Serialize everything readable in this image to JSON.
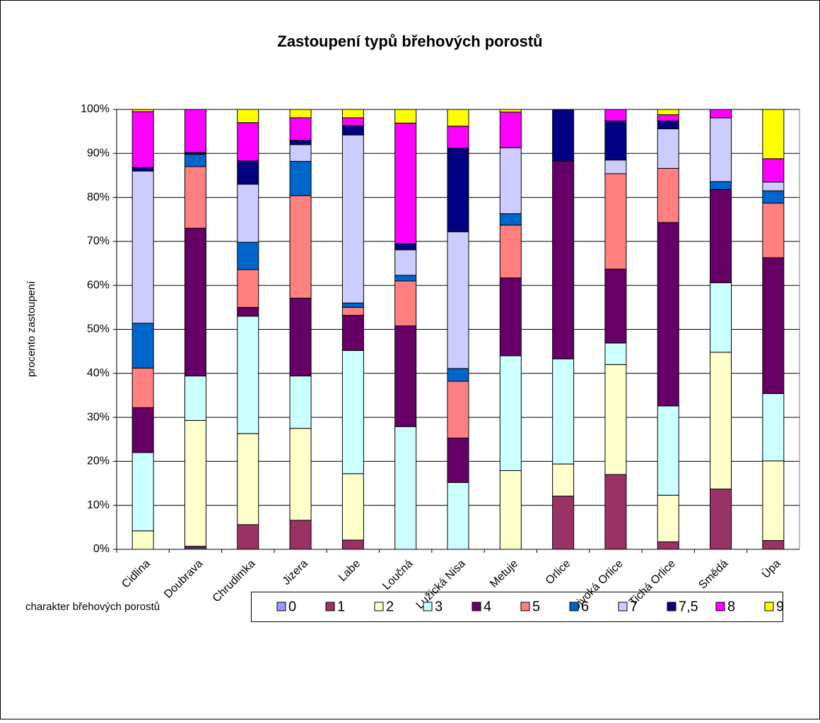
{
  "chart_data": {
    "type": "stacked_bar_100",
    "title": "Zastoupení typů břehových porostů",
    "y_label": "procento zastoupení",
    "legend_title": "charakter břehových porostů",
    "categories": [
      "Cidlina",
      "Doubrava",
      "Chrudimka",
      "Jizera",
      "Labe",
      "Loučná",
      "Lužická Nisa",
      "Metuje",
      "Orlice",
      "Divoká Orlice",
      "Tichá Orlice",
      "Smědá",
      "Úpa"
    ],
    "series": [
      {
        "name": "0",
        "color": "#9999ff",
        "values": [
          0,
          0.3,
          0,
          0,
          0,
          0,
          0,
          0,
          0,
          0,
          0,
          0,
          0
        ]
      },
      {
        "name": "1",
        "color": "#993366",
        "values": [
          0,
          0.4,
          5.6,
          6.6,
          2.1,
          0,
          0,
          0,
          12.1,
          17,
          1.7,
          13.7,
          2
        ]
      },
      {
        "name": "2",
        "color": "#ffffcc",
        "values": [
          4.2,
          28.6,
          20.7,
          20.9,
          15.1,
          0,
          0,
          17.9,
          7.3,
          25,
          10.6,
          31.1,
          18.1
        ]
      },
      {
        "name": "3",
        "color": "#ccffff",
        "values": [
          17.8,
          10.1,
          26.7,
          11.9,
          28,
          27.9,
          15.2,
          26.1,
          23.9,
          4.9,
          20.3,
          15.8,
          15.3
        ]
      },
      {
        "name": "4",
        "color": "#660066",
        "values": [
          10.2,
          33.6,
          2,
          17.7,
          8,
          22.9,
          10.1,
          17.7,
          45,
          16.8,
          41.7,
          21.2,
          30.9
        ]
      },
      {
        "name": "5",
        "color": "#ff8080",
        "values": [
          9,
          14,
          8.6,
          23.3,
          1.8,
          10.2,
          12.9,
          12,
          0,
          21.7,
          12.3,
          0,
          12.4
        ]
      },
      {
        "name": "6",
        "color": "#0066cc",
        "values": [
          10.2,
          2.8,
          6.2,
          7.8,
          1,
          1.3,
          2.9,
          2.6,
          0,
          0,
          0,
          1.8,
          2.8
        ]
      },
      {
        "name": "7",
        "color": "#ccccff",
        "values": [
          34.6,
          0,
          13.2,
          3.8,
          38.2,
          5.8,
          31.1,
          15,
          0,
          3.1,
          9,
          14.5,
          2
        ]
      },
      {
        "name": "7,5",
        "color": "#000080",
        "values": [
          0.8,
          0.4,
          5.3,
          1,
          2.1,
          1.4,
          19,
          0,
          11.7,
          8.9,
          1.8,
          0,
          0
        ]
      },
      {
        "name": "8",
        "color": "#ff00ff",
        "values": [
          12.7,
          9.8,
          8.7,
          5.1,
          1.8,
          27.4,
          5,
          8.1,
          0,
          2.6,
          1.4,
          1.9,
          5.3
        ]
      },
      {
        "name": "9",
        "color": "#ffff00",
        "values": [
          0.5,
          0,
          3,
          1.9,
          1.9,
          3.1,
          3.8,
          0.6,
          0,
          0,
          1.2,
          0,
          11.2
        ]
      }
    ],
    "ylim": [
      0,
      100
    ],
    "yticks": [
      {
        "value": 0,
        "label": "0%"
      },
      {
        "value": 10,
        "label": "10%"
      },
      {
        "value": 20,
        "label": "20%"
      },
      {
        "value": 30,
        "label": "30%"
      },
      {
        "value": 40,
        "label": "40%"
      },
      {
        "value": 50,
        "label": "50%"
      },
      {
        "value": 60,
        "label": "60%"
      },
      {
        "value": 70,
        "label": "70%"
      },
      {
        "value": 80,
        "label": "80%"
      },
      {
        "value": 90,
        "label": "90%"
      },
      {
        "value": 100,
        "label": "100%"
      }
    ],
    "grid": true
  }
}
